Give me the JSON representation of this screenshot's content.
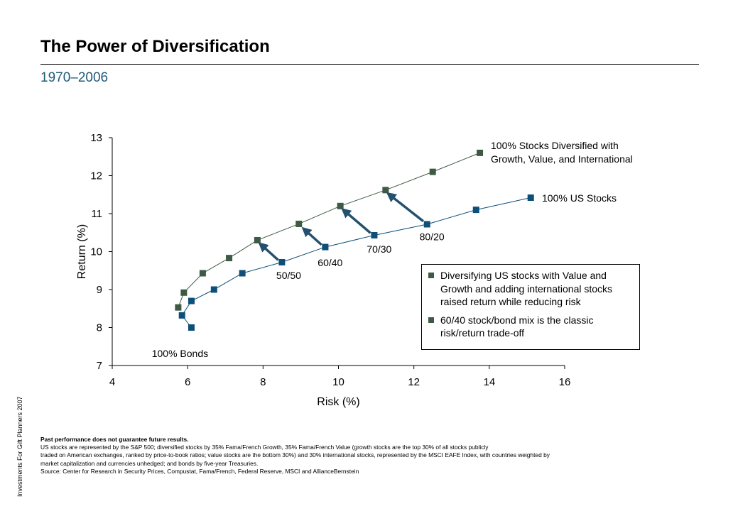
{
  "header": {
    "title": "The Power of Diversification",
    "subtitle": "1970–2006"
  },
  "side_note": "Investments For Gift Planners 2007",
  "callout": {
    "bullets": [
      {
        "line1": "Diversifying US stocks with Value and",
        "line2": "Growth and adding international stocks",
        "line3": "raised return while reducing risk"
      },
      {
        "line1": "60/40 stock/bond mix is the classic",
        "line2": "risk/return trade-off",
        "line3": ""
      }
    ]
  },
  "footnotes": {
    "line1": "Past performance does not guarantee future results.",
    "line2": "US stocks are represented by the S&P 500; diversified stocks by 35% Fama/French Growth, 35% Fama/French Value (growth stocks are the top 30% of all stocks publicly",
    "line3": "traded on American exchanges, ranked by price-to-book ratios; value stocks are the bottom 30%) and 30% international stocks, represented by the MSCI EAFE Index, with countries weighted by",
    "line4": "market capitalization and currencies unhedged; and bonds by five-year Treasuries.",
    "line5": "Source: Center for Research in Security Prices, Compustat, Fama/French, Federal Reserve, MSCI and AllianceBernstein"
  },
  "colors": {
    "diversified": "#3e5a44",
    "us_stocks": "#0d4f78",
    "arrow": "#24506f",
    "axis": "#000000"
  },
  "chart_data": {
    "type": "line",
    "xlabel": "Risk (%)",
    "ylabel": "Return (%)",
    "xlim": [
      4,
      16
    ],
    "ylim": [
      7,
      13
    ],
    "xticks": [
      "4",
      "6",
      "8",
      "10",
      "12",
      "14",
      "16"
    ],
    "yticks": [
      "7",
      "8",
      "9",
      "10",
      "11",
      "12",
      "13"
    ],
    "grid": false,
    "series": [
      {
        "name": "100% Stocks Diversified with Growth, Value, and International",
        "label_line1": "100% Stocks Diversified with",
        "label_line2": "Growth, Value, and International",
        "x": [
          5.75,
          5.9,
          6.4,
          7.1,
          7.85,
          8.95,
          10.05,
          11.25,
          12.5,
          13.75
        ],
        "y": [
          8.53,
          8.92,
          9.43,
          9.83,
          10.3,
          10.73,
          11.2,
          11.62,
          12.1,
          12.6
        ]
      },
      {
        "name": "100% US Stocks",
        "label_line1": "100% US Stocks",
        "label_line2": "",
        "x": [
          6.1,
          5.85,
          6.1,
          6.7,
          7.45,
          8.5,
          9.65,
          10.95,
          12.35,
          13.65,
          15.1
        ],
        "y": [
          8.0,
          8.32,
          8.7,
          9.0,
          9.43,
          9.72,
          10.12,
          10.43,
          10.72,
          11.1,
          11.42
        ]
      }
    ],
    "annotations": [
      {
        "text": "100% Bonds",
        "x": 5.05,
        "y": 7.22
      },
      {
        "text": "50/50",
        "x": 8.35,
        "y": 9.28
      },
      {
        "text": "60/40",
        "x": 9.45,
        "y": 9.62
      },
      {
        "text": "70/30",
        "x": 10.75,
        "y": 9.97
      },
      {
        "text": "80/20",
        "x": 12.15,
        "y": 10.3
      }
    ],
    "arrows": [
      {
        "from": [
          8.4,
          9.78
        ],
        "to": [
          7.95,
          10.18
        ]
      },
      {
        "from": [
          9.55,
          10.18
        ],
        "to": [
          9.1,
          10.58
        ]
      },
      {
        "from": [
          10.85,
          10.49
        ],
        "to": [
          10.15,
          11.08
        ]
      },
      {
        "from": [
          12.25,
          10.8
        ],
        "to": [
          11.35,
          11.5
        ]
      }
    ]
  }
}
